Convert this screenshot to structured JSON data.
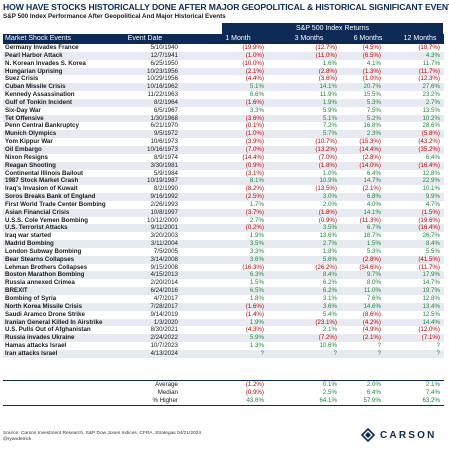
{
  "title": "HOW HAVE STOCKS HISTORICALLY DONE AFTER MAJOR GEOPOLITICAL & HISTORICAL SIGNIFICANT EVENTS?",
  "subtitle": "S&P 500 Index Performance After Geopolitical And Major Historical Events",
  "group_header": "S&P 500 Index Returns",
  "columns": [
    "Market Shock Events",
    "Event Date",
    "1 Month",
    "3 Months",
    "6 Months",
    "12 Months"
  ],
  "rows": [
    [
      "Germany Invades France",
      "5/10/1940",
      "(19.9%)",
      "(12.7%)",
      "(4.5%)",
      "(18.7%)"
    ],
    [
      "Pearl Harbor Attack",
      "12/7/1941",
      "(1.0%)",
      "(11.0%)",
      "(6.5%)",
      "4.3%"
    ],
    [
      "N. Korean Invades S. Korea",
      "6/25/1950",
      "(10.0%)",
      "1.6%",
      "4.1%",
      "11.7%"
    ],
    [
      "Hungarian Uprising",
      "10/23/1956",
      "(2.1%)",
      "(2.8%)",
      "(1.3%)",
      "(11.7%)"
    ],
    [
      "Suez Crisis",
      "10/29/1956",
      "(4.4%)",
      "(3.6%)",
      "(1.0%)",
      "(12.3%)"
    ],
    [
      "Cuban Missile Crisis",
      "10/16/1962",
      "5.1%",
      "14.1%",
      "20.7%",
      "27.6%"
    ],
    [
      "Kennedy Assassination",
      "11/22/1963",
      "6.6%",
      "11.9%",
      "15.5%",
      "23.2%"
    ],
    [
      "Gulf of Tonkin Incident",
      "8/2/1964",
      "(1.6%)",
      "1.9%",
      "5.3%",
      "2.7%"
    ],
    [
      "Six-Day War",
      "6/5/1967",
      "3.3%",
      "5.9%",
      "7.5%",
      "13.5%"
    ],
    [
      "Tet Offensive",
      "1/30/1968",
      "(3.6%)",
      "5.1%",
      "5.2%",
      "10.2%"
    ],
    [
      "Penn Central Bankruptcy",
      "6/21/1970",
      "(0.1%)",
      "7.2%",
      "16.8%",
      "28.6%"
    ],
    [
      "Munich Olympics",
      "9/5/1972",
      "(1.0%)",
      "5.7%",
      "2.3%",
      "(5.8%)"
    ],
    [
      "Yom Kippur War",
      "10/6/1973",
      "(3.9%)",
      "(10.7%)",
      "(15.3%)",
      "(43.2%)"
    ],
    [
      "Oil Embargo",
      "10/16/1973",
      "(7.0%)",
      "(13.2%)",
      "(14.4%)",
      "(35.2%)"
    ],
    [
      "Nixon Resigns",
      "8/9/1974",
      "(14.4%)",
      "(7.0%)",
      "(2.8%)",
      "6.4%"
    ],
    [
      "Reagan Shooting",
      "3/30/1981",
      "(0.9%)",
      "(1.8%)",
      "(14.0%)",
      "(16.4%)"
    ],
    [
      "Continental Illinois Bailout",
      "5/9/1984",
      "(3.1%)",
      "1.0%",
      "6.4%",
      "12.8%"
    ],
    [
      "1987 Stock Market Crash",
      "10/19/1987",
      "8.1%",
      "10.9%",
      "14.7%",
      "22.9%"
    ],
    [
      "Iraq's Invasion of Kuwait",
      "8/2/1990",
      "(8.2%)",
      "(13.5%)",
      "(2.1%)",
      "10.1%"
    ],
    [
      "Soros Breaks Bank of England",
      "9/16/1992",
      "(2.5%)",
      "3.0%",
      "6.8%",
      "9.9%"
    ],
    [
      "First World Trade Center Bombing",
      "2/26/1993",
      "1.7%",
      "2.0%",
      "4.0%",
      "4.7%"
    ],
    [
      "Asian Financial Crisis",
      "10/8/1997",
      "(3.7%)",
      "(1.8%)",
      "14.1%",
      "(1.5%)"
    ],
    [
      "U.S.S. Cole Yemen Bombing",
      "10/12/2000",
      "2.7%",
      "(0.9%)",
      "(11.3%)",
      "(19.6%)"
    ],
    [
      "U.S. Terrorist Attacks",
      "9/11/2001",
      "(0.2%)",
      "3.5%",
      "6.7%",
      "(16.4%)"
    ],
    [
      "Iraq war started",
      "3/20/2003",
      "1.9%",
      "13.6%",
      "18.7%",
      "26.7%"
    ],
    [
      "Madrid Bombing",
      "3/11/2004",
      "3.5%",
      "2.7%",
      "1.5%",
      "8.4%"
    ],
    [
      "London Subway Bombing",
      "7/5/2005",
      "3.3%",
      "1.8%",
      "5.3%",
      "5.5%"
    ],
    [
      "Bear Stearns Collapses",
      "3/14/2008",
      "3.6%",
      "5.6%",
      "(2.8%)",
      "(41.5%)"
    ],
    [
      "Lehman Brothers Collapses",
      "9/15/2008",
      "(16.3%)",
      "(26.2%)",
      "(34.6%)",
      "(11.7%)"
    ],
    [
      "Boston Marathon Bombing",
      "4/15/2013",
      "6.3%",
      "8.4%",
      "9.7%",
      "17.9%"
    ],
    [
      "Russia annexed Crimea",
      "2/20/2014",
      "1.5%",
      "6.2%",
      "8.0%",
      "14.7%"
    ],
    [
      "BREXIT",
      "6/24/2016",
      "6.5%",
      "6.2%",
      "11.0%",
      "19.7%"
    ],
    [
      "Bombing of Syria",
      "4/7/2017",
      "1.8%",
      "3.1%",
      "7.6%",
      "12.8%"
    ],
    [
      "North Korea Missile Crisis",
      "7/28/2017",
      "(1.6%)",
      "3.6%",
      "14.6%",
      "13.4%"
    ],
    [
      "Saudi Aramco Drone Strike",
      "9/14/2019",
      "(1.4%)",
      "5.4%",
      "(8.6%)",
      "12.5%"
    ],
    [
      "Iranian General Killed In Airstrike",
      "1/3/2020",
      "1.9%",
      "(23.1%)",
      "(4.2%)",
      "14.4%"
    ],
    [
      "U.S. Pulls Out of Afghanistan",
      "8/30/2021",
      "(4.3%)",
      "2.1%",
      "(4.9%)",
      "(12.0%)"
    ],
    [
      "Russia invades Ukraine",
      "2/24/2022",
      "5.9%",
      "(7.2%)",
      "(2.1%)",
      "(7.1%)"
    ],
    [
      "Hamas attacks Israel",
      "10/7/2023",
      "1.3%",
      "10.6%",
      "?",
      "?"
    ],
    [
      "Iran attacks Israel",
      "4/13/2024",
      "?",
      "?",
      "?",
      "?"
    ]
  ],
  "summary": [
    [
      "Average",
      "(1.2%)",
      "0.1%",
      "2.0%",
      "2.1%"
    ],
    [
      "Median",
      "(0.9%)",
      "2.5%",
      "6.4%",
      "7.4%"
    ],
    [
      "% Higher",
      "43.6%",
      "64.1%",
      "57.9%",
      "63.2%"
    ]
  ],
  "source_lines": [
    "Source: Carson Investment Research, S&P Dow Jones Indices, CFRA, Strategas 04/21/2024",
    "@ryandetrick"
  ],
  "logo_text": "CARSON",
  "colors": {
    "navy": "#0d2a57",
    "negative": "#c00000",
    "positive": "#1f8a3a",
    "stripe": "#e7ebf1"
  }
}
